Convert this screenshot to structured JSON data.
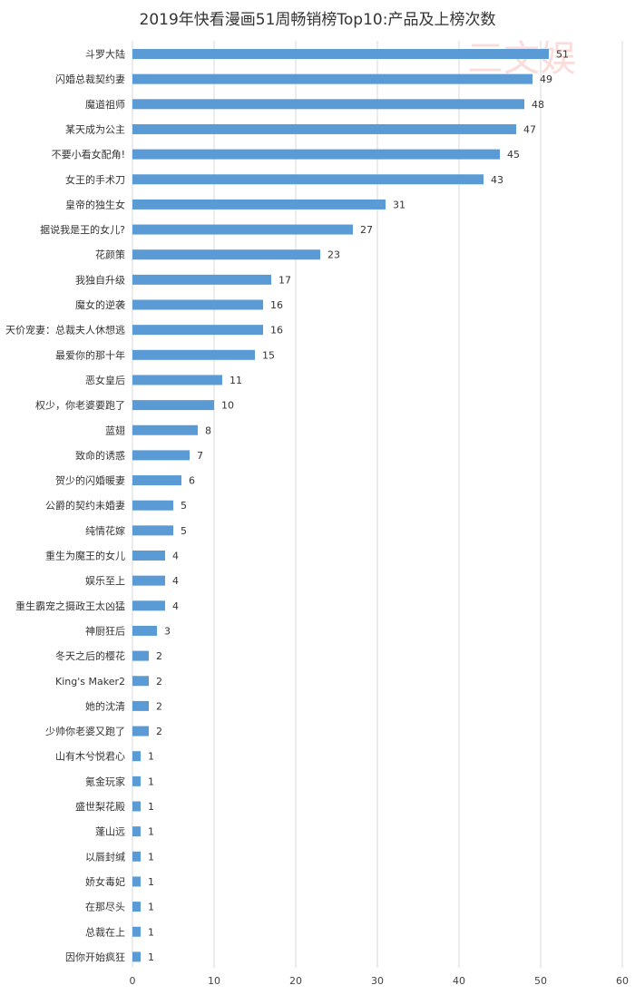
{
  "chart_data": {
    "type": "bar",
    "orientation": "horizontal",
    "title": "2019年快看漫画51周畅销榜Top10:产品及上榜次数",
    "xlabel": "",
    "ylabel": "",
    "xlim": [
      0,
      60
    ],
    "x_ticks": [
      0,
      10,
      20,
      30,
      40,
      50,
      60
    ],
    "grid": "vertical",
    "bar_color": "#5b9bd5",
    "categories": [
      "斗罗大陆",
      "闪婚总裁契约妻",
      "魔道祖师",
      "某天成为公主",
      "不要小看女配角!",
      "女王的手术刀",
      "皇帝的独生女",
      "据说我是王的女儿?",
      "花颜策",
      "我独自升级",
      "魔女的逆袭",
      "天价宠妻：总裁夫人休想逃",
      "最爱你的那十年",
      "恶女皇后",
      "权少，你老婆要跑了",
      "蓝翅",
      "致命的诱惑",
      "贺少的闪婚暖妻",
      "公爵的契约未婚妻",
      "纯情花嫁",
      "重生为魔王的女儿",
      "娱乐至上",
      "重生霸宠之摄政王太凶猛",
      "神厨狂后",
      "冬天之后的樱花",
      "King's Maker2",
      "她的沈清",
      "少帅你老婆又跑了",
      "山有木兮悦君心",
      "氪金玩家",
      "盛世梨花殿",
      "蓬山远",
      "以唇封缄",
      "娇女毒妃",
      "在那尽头",
      "总裁在上",
      "因你开始疯狂"
    ],
    "values": [
      51,
      49,
      48,
      47,
      45,
      43,
      31,
      27,
      23,
      17,
      16,
      16,
      15,
      11,
      10,
      8,
      7,
      6,
      5,
      5,
      4,
      4,
      4,
      3,
      2,
      2,
      2,
      2,
      1,
      1,
      1,
      1,
      1,
      1,
      1,
      1,
      1
    ]
  },
  "watermark": {
    "text": "三文娱",
    "color": "#f2a7a3"
  }
}
